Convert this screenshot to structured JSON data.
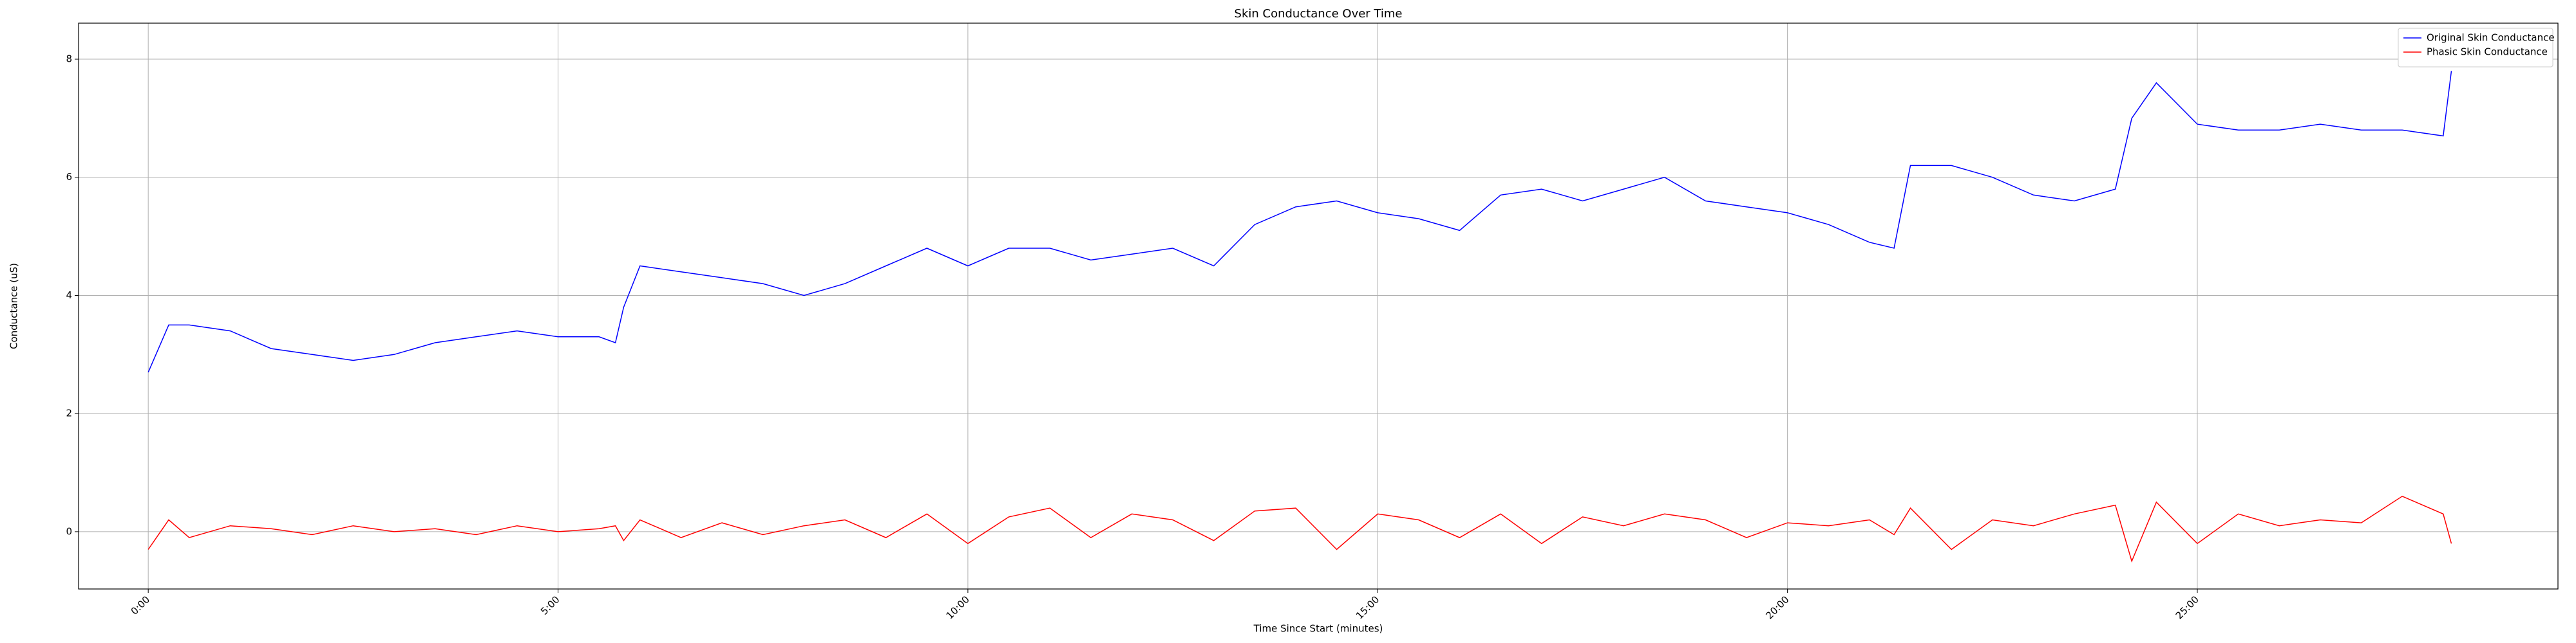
{
  "chart_data": {
    "type": "line",
    "title": "Skin Conductance  Over Time",
    "x_label": "Time Since Start (minutes)",
    "y_label": "Conductance (uS)",
    "x": [
      0,
      0.25,
      0.5,
      1,
      1.5,
      2,
      2.5,
      3,
      3.5,
      4,
      4.5,
      5,
      5.5,
      5.7,
      5.8,
      6,
      6.5,
      7,
      7.5,
      8,
      8.5,
      9,
      9.5,
      10,
      10.5,
      11,
      11.5,
      12,
      12.5,
      13,
      13.5,
      14,
      14.5,
      15,
      15.5,
      16,
      16.5,
      17,
      17.5,
      18,
      18.5,
      19,
      19.5,
      20,
      20.5,
      21,
      21.3,
      21.5,
      22,
      22.5,
      23,
      23.5,
      24,
      24.2,
      24.5,
      25,
      25.5,
      26,
      26.5,
      27,
      27.5,
      28,
      28.1
    ],
    "series": [
      {
        "name": "Original Skin Conductance",
        "color": "#0000ff",
        "values": [
          2.7,
          3.5,
          3.5,
          3.4,
          3.1,
          3.0,
          2.9,
          3.0,
          3.2,
          3.3,
          3.4,
          3.3,
          3.3,
          3.2,
          3.8,
          4.5,
          4.4,
          4.3,
          4.2,
          4.0,
          4.2,
          4.5,
          4.8,
          4.5,
          4.8,
          4.8,
          4.6,
          4.7,
          4.8,
          4.5,
          5.2,
          5.5,
          5.6,
          5.4,
          5.3,
          5.1,
          5.7,
          5.8,
          5.6,
          5.8,
          6.0,
          5.6,
          5.5,
          5.4,
          5.2,
          4.9,
          4.8,
          6.2,
          6.2,
          6.0,
          5.7,
          5.6,
          5.8,
          7.0,
          7.6,
          6.9,
          6.8,
          6.8,
          6.9,
          6.8,
          6.8,
          6.7,
          7.8
        ]
      },
      {
        "name": "Phasic Skin Conductance",
        "color": "#ff0000",
        "values": [
          -0.3,
          0.2,
          -0.1,
          0.1,
          0.05,
          -0.05,
          0.1,
          0.0,
          0.05,
          -0.05,
          0.1,
          0.0,
          0.05,
          0.1,
          -0.15,
          0.2,
          -0.1,
          0.15,
          -0.05,
          0.1,
          0.2,
          -0.1,
          0.3,
          -0.2,
          0.25,
          0.4,
          -0.1,
          0.3,
          0.2,
          -0.15,
          0.35,
          0.4,
          -0.3,
          0.3,
          0.2,
          -0.1,
          0.3,
          -0.2,
          0.25,
          0.1,
          0.3,
          0.2,
          -0.1,
          0.15,
          0.1,
          0.2,
          -0.05,
          0.4,
          -0.3,
          0.2,
          0.1,
          0.3,
          0.45,
          -0.5,
          0.5,
          -0.2,
          0.3,
          0.1,
          0.2,
          0.15,
          0.6,
          0.3,
          -0.2
        ]
      }
    ],
    "xlim": [
      -0.85,
      29.4
    ],
    "xticks": [
      {
        "value": 0,
        "label": "0:00"
      },
      {
        "value": 5,
        "label": "5:00"
      },
      {
        "value": 10,
        "label": "10:00"
      },
      {
        "value": 15,
        "label": "15:00"
      },
      {
        "value": 20,
        "label": "20:00"
      },
      {
        "value": 25,
        "label": "25:00"
      }
    ],
    "ylim": [
      -0.97,
      8.61
    ],
    "yticks": [
      0,
      2,
      4,
      6,
      8
    ],
    "grid": true,
    "legend": "upper-right"
  }
}
